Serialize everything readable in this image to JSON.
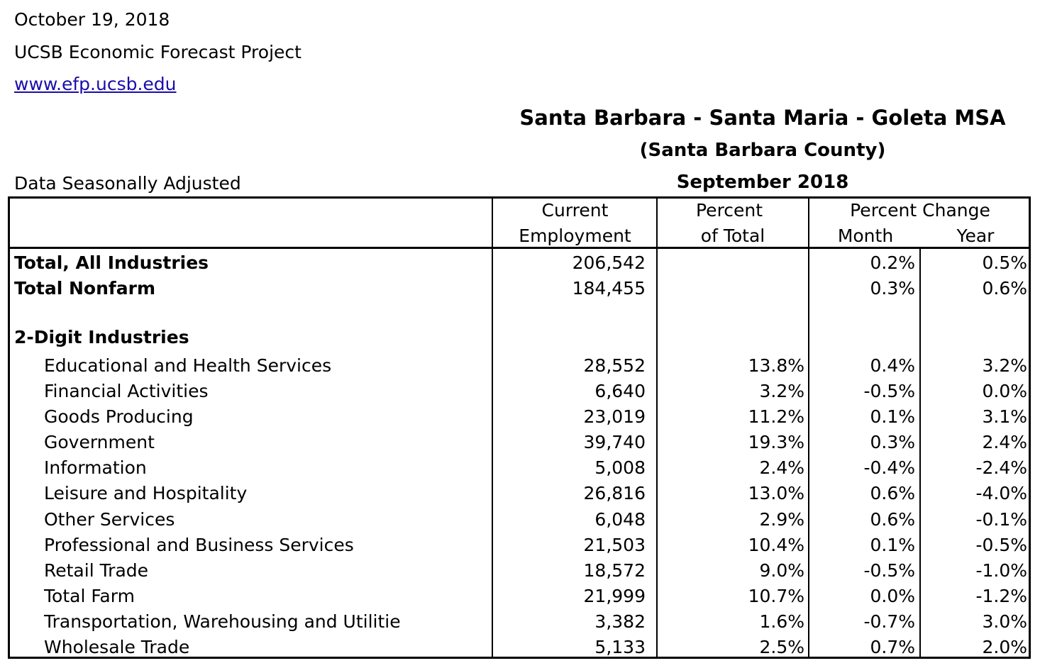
{
  "header": {
    "date": "October 19, 2018",
    "org": "UCSB Economic Forecast Project",
    "url": "www.efp.ucsb.edu",
    "note": "Data Seasonally Adjusted"
  },
  "title": {
    "line1": "Santa Barbara - Santa Maria - Goleta MSA",
    "line2": "(Santa Barbara County)",
    "line3": "September 2018"
  },
  "columns": {
    "current1": "Current",
    "current2": "Employment",
    "percent1": "Percent",
    "percent2": "of Total",
    "change": "Percent Change",
    "month": "Month",
    "year": "Year"
  },
  "rows": [
    {
      "label": "Total, All Industries",
      "employment": "206,542",
      "percent": "",
      "month": "0.2%",
      "year": "0.5%"
    },
    {
      "label": "Total Nonfarm",
      "employment": "184,455",
      "percent": "",
      "month": "0.3%",
      "year": "0.6%"
    },
    {
      "label": "2-Digit Industries"
    },
    {
      "label": "Educational and Health Services",
      "employment": "28,552",
      "percent": "13.8%",
      "month": "0.4%",
      "year": "3.2%"
    },
    {
      "label": "Financial Activities",
      "employment": "6,640",
      "percent": "3.2%",
      "month": "-0.5%",
      "year": "0.0%"
    },
    {
      "label": "Goods Producing",
      "employment": "23,019",
      "percent": "11.2%",
      "month": "0.1%",
      "year": "3.1%"
    },
    {
      "label": "Government",
      "employment": "39,740",
      "percent": "19.3%",
      "month": "0.3%",
      "year": "2.4%"
    },
    {
      "label": "Information",
      "employment": "5,008",
      "percent": "2.4%",
      "month": "-0.4%",
      "year": "-2.4%"
    },
    {
      "label": "Leisure and Hospitality",
      "employment": "26,816",
      "percent": "13.0%",
      "month": "0.6%",
      "year": "-4.0%"
    },
    {
      "label": "Other Services",
      "employment": "6,048",
      "percent": "2.9%",
      "month": "0.6%",
      "year": "-0.1%"
    },
    {
      "label": "Professional and Business Services",
      "employment": "21,503",
      "percent": "10.4%",
      "month": "0.1%",
      "year": "-0.5%"
    },
    {
      "label": "Retail Trade",
      "employment": "18,572",
      "percent": "9.0%",
      "month": "-0.5%",
      "year": "-1.0%"
    },
    {
      "label": "Total Farm",
      "employment": "21,999",
      "percent": "10.7%",
      "month": "0.0%",
      "year": "-1.2%"
    },
    {
      "label": "Transportation, Warehousing and Utilitie",
      "employment": "3,382",
      "percent": "1.6%",
      "month": "-0.7%",
      "year": "3.0%"
    },
    {
      "label": "Wholesale Trade",
      "employment": "5,133",
      "percent": "2.5%",
      "month": "0.7%",
      "year": "2.0%"
    }
  ]
}
